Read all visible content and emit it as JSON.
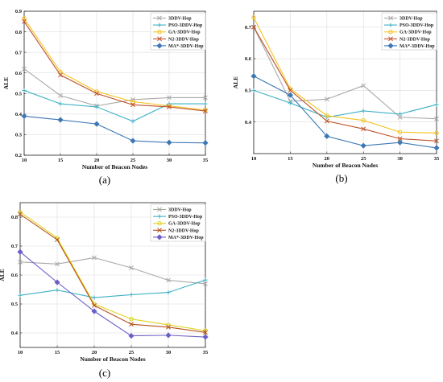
{
  "chart_data": [
    {
      "type": "line",
      "caption": "(a)",
      "x": [
        10,
        15,
        20,
        25,
        30,
        35
      ],
      "xlabel": "Number of Beacon Nodes",
      "ylabel": "ALE",
      "xlim": [
        10,
        35
      ],
      "ylim": [
        0.2,
        0.9
      ],
      "xticks": [
        10,
        15,
        20,
        25,
        30,
        35
      ],
      "yticks": [
        0.2,
        0.3,
        0.4,
        0.5,
        0.6,
        0.7,
        0.8,
        0.9
      ],
      "grid": true,
      "legend_position": "top-right",
      "series": [
        {
          "name": "3DDV-Hop",
          "color": "#a9a9a9",
          "marker": "x",
          "values": [
            0.62,
            0.49,
            0.44,
            0.47,
            0.48,
            0.48
          ]
        },
        {
          "name": "PSO-3DDV-Hop",
          "color": "#3fb1c5",
          "marker": "+",
          "values": [
            0.515,
            0.45,
            0.435,
            0.365,
            0.45,
            0.45
          ]
        },
        {
          "name": "GA-3DDV-Hop",
          "color": "#f5c31c",
          "marker": "circle",
          "values": [
            0.865,
            0.605,
            0.51,
            0.46,
            0.44,
            0.42
          ]
        },
        {
          "name": "N2-3DDV-Hop",
          "color": "#c0522b",
          "marker": "x",
          "values": [
            0.85,
            0.59,
            0.5,
            0.445,
            0.435,
            0.415
          ]
        },
        {
          "name": "MA*-3DDV-Hop",
          "color": "#3d78b5",
          "marker": "diamond",
          "values": [
            0.39,
            0.372,
            0.352,
            0.27,
            0.262,
            0.26
          ]
        }
      ]
    },
    {
      "type": "line",
      "caption": "(b)",
      "x": [
        10,
        15,
        20,
        25,
        30,
        35
      ],
      "xlabel": "Number of Beacon Nodes",
      "ylabel": "ALE",
      "xlim": [
        10,
        35
      ],
      "ylim": [
        0.3,
        0.75
      ],
      "xticks": [
        10,
        15,
        20,
        25,
        30,
        35
      ],
      "yticks": [
        0.4,
        0.5,
        0.6,
        0.7
      ],
      "grid": true,
      "legend_position": "top-right",
      "series": [
        {
          "name": "3DDV-Hop",
          "color": "#a9a9a9",
          "marker": "x",
          "values": [
            0.7,
            0.465,
            0.472,
            0.515,
            0.415,
            0.41
          ]
        },
        {
          "name": "PSO-3DDV-Hop",
          "color": "#3fb1c5",
          "marker": "+",
          "values": [
            0.5,
            0.46,
            0.415,
            0.435,
            0.425,
            0.455
          ]
        },
        {
          "name": "GA-3DDV-Hop",
          "color": "#f5c31c",
          "marker": "circle",
          "values": [
            0.73,
            0.505,
            0.42,
            0.405,
            0.368,
            0.365
          ]
        },
        {
          "name": "N2-3DDV-Hop",
          "color": "#c0522b",
          "marker": "x",
          "values": [
            0.7,
            0.5,
            0.403,
            0.378,
            0.347,
            0.34
          ]
        },
        {
          "name": "MA*-3DDV-Hop",
          "color": "#3d78b5",
          "marker": "diamond",
          "values": [
            0.545,
            0.485,
            0.355,
            0.325,
            0.335,
            0.318
          ]
        }
      ]
    },
    {
      "type": "line",
      "caption": "(c)",
      "x": [
        10,
        15,
        20,
        25,
        30,
        35
      ],
      "xlabel": "Number of Beacon Nodes",
      "ylabel": "ALE",
      "xlim": [
        10,
        35
      ],
      "ylim": [
        0.35,
        0.85
      ],
      "xticks": [
        10,
        15,
        20,
        25,
        30,
        35
      ],
      "yticks": [
        0.4,
        0.5,
        0.6,
        0.7,
        0.8
      ],
      "grid": true,
      "legend_position": "top-right",
      "series": [
        {
          "name": "3DDV-Hop",
          "color": "#a9a9a9",
          "marker": "x",
          "values": [
            0.645,
            0.638,
            0.66,
            0.625,
            0.582,
            0.57
          ]
        },
        {
          "name": "PSO-3DDV-Hop",
          "color": "#3fb1c5",
          "marker": "+",
          "values": [
            0.53,
            0.548,
            0.522,
            0.532,
            0.54,
            0.583
          ]
        },
        {
          "name": "GA-3DDV-Hop",
          "color": "#dcd51d",
          "marker": "circle",
          "values": [
            0.818,
            0.728,
            0.5,
            0.448,
            0.428,
            0.408
          ]
        },
        {
          "name": "N2-3DDV-Hop",
          "color": "#b8501c",
          "marker": "x",
          "values": [
            0.81,
            0.722,
            0.495,
            0.43,
            0.42,
            0.402
          ]
        },
        {
          "name": "MA*-3DDV-Hop",
          "color": "#6b5fc7",
          "marker": "diamond",
          "values": [
            0.68,
            0.575,
            0.475,
            0.39,
            0.392,
            0.386
          ]
        }
      ]
    }
  ]
}
